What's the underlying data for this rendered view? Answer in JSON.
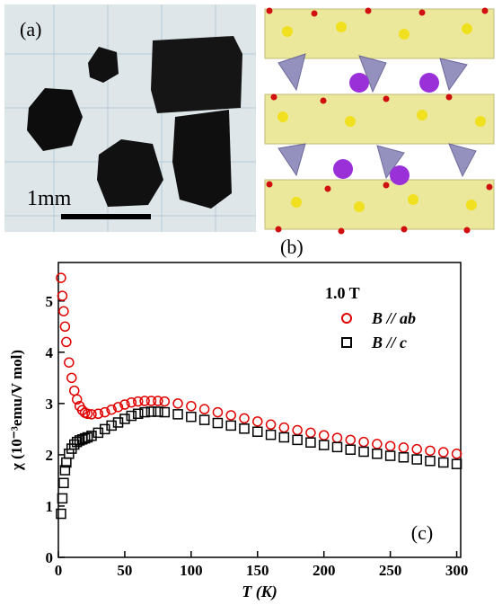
{
  "panels": {
    "a": {
      "label": "(a)",
      "scale_label": "1mm"
    },
    "b": {
      "label": "(b)"
    }
  },
  "chart_data": {
    "type": "scatter",
    "panel_label": "(c)",
    "x_label": "T (K)",
    "y_label": "χ (10⁻³emu/V mol)",
    "legend_title": "1.0 T",
    "xlim": [
      0,
      303
    ],
    "ylim": [
      0,
      5.75
    ],
    "xticks": [
      0,
      50,
      100,
      150,
      200,
      250,
      300
    ],
    "yticks": [
      0,
      1,
      2,
      3,
      4,
      5
    ],
    "x": [
      2,
      3,
      4,
      5,
      6,
      8,
      10,
      12,
      14,
      16,
      18,
      20,
      22,
      25,
      30,
      35,
      40,
      45,
      50,
      55,
      60,
      65,
      70,
      75,
      80,
      90,
      100,
      110,
      120,
      130,
      140,
      150,
      160,
      170,
      180,
      190,
      200,
      210,
      220,
      230,
      240,
      250,
      260,
      270,
      280,
      290,
      300
    ],
    "series": [
      {
        "name": "B // ab",
        "color": "#e00000",
        "marker": "circle",
        "values": [
          5.45,
          5.1,
          4.8,
          4.5,
          4.2,
          3.8,
          3.5,
          3.25,
          3.08,
          2.95,
          2.87,
          2.82,
          2.8,
          2.79,
          2.8,
          2.83,
          2.88,
          2.93,
          2.98,
          3.02,
          3.04,
          3.05,
          3.05,
          3.05,
          3.04,
          3.0,
          2.95,
          2.89,
          2.83,
          2.77,
          2.71,
          2.65,
          2.59,
          2.53,
          2.48,
          2.43,
          2.38,
          2.33,
          2.29,
          2.25,
          2.21,
          2.17,
          2.14,
          2.11,
          2.08,
          2.05,
          2.02
        ]
      },
      {
        "name": "B // c",
        "color": "#000000",
        "marker": "square",
        "values": [
          0.85,
          1.15,
          1.45,
          1.7,
          1.85,
          2.02,
          2.12,
          2.2,
          2.25,
          2.28,
          2.3,
          2.32,
          2.34,
          2.37,
          2.43,
          2.5,
          2.57,
          2.63,
          2.7,
          2.76,
          2.8,
          2.83,
          2.84,
          2.84,
          2.83,
          2.79,
          2.74,
          2.68,
          2.62,
          2.57,
          2.51,
          2.45,
          2.39,
          2.34,
          2.29,
          2.24,
          2.19,
          2.15,
          2.1,
          2.06,
          2.02,
          1.98,
          1.95,
          1.91,
          1.88,
          1.85,
          1.82
        ]
      }
    ]
  }
}
